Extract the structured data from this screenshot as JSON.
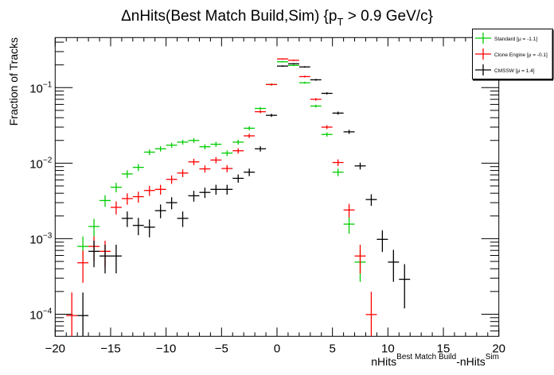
{
  "chart_data": {
    "type": "scatter",
    "title": "ΔnHits(Best Match Build,Sim) {p",
    "title_sub": "T",
    "title_tail": " > 0.9 GeV/c}",
    "xlabel": "nHits",
    "xlabel_sup1": "Best Match Build",
    "xlabel_mid": "-nHits",
    "xlabel_sup2": "Sim",
    "ylabel": "Fraction of Tracks",
    "xlim": [
      -20,
      20
    ],
    "ylim": [
      5.1e-05,
      0.46
    ],
    "yscale": "log",
    "bin_width": 1,
    "x_ticks": [
      "−20",
      "−15",
      "−10",
      "−5",
      "0",
      "5",
      "10",
      "15",
      "20"
    ],
    "x_tick_values": [
      -20,
      -15,
      -10,
      -5,
      0,
      5,
      10,
      15,
      20
    ],
    "y_ticks": [
      {
        "base": "10",
        "exp": "−1",
        "value": 0.1
      },
      {
        "base": "10",
        "exp": "−2",
        "value": 0.01
      },
      {
        "base": "10",
        "exp": "−3",
        "value": 0.001
      },
      {
        "base": "10",
        "exp": "−4",
        "value": 0.0001
      }
    ],
    "legend_position": "top-right",
    "series": [
      {
        "name": "Standard",
        "legend": "Standard  [μ = -1.1]",
        "color": "#00cc00",
        "x": [
          -17.5,
          -16.5,
          -15.5,
          -14.5,
          -13.5,
          -12.5,
          -11.5,
          -10.5,
          -9.5,
          -8.5,
          -7.5,
          -6.5,
          -5.5,
          -4.5,
          -3.5,
          -2.5,
          -1.5,
          -0.5,
          0.5,
          1.5,
          2.5,
          3.5,
          4.5,
          5.5,
          6.5,
          7.5
        ],
        "y": [
          0.00079,
          0.00145,
          0.0032,
          0.0048,
          0.0072,
          0.0088,
          0.014,
          0.0155,
          0.0173,
          0.019,
          0.02,
          0.0165,
          0.0178,
          0.0136,
          0.019,
          0.029,
          0.053,
          0.11,
          0.22,
          0.197,
          0.116,
          0.057,
          0.024,
          0.0076,
          0.00156,
          0.00049
        ]
      },
      {
        "name": "Clone Engine",
        "legend": "Clone Engine  [μ = -0.1]",
        "color": "#ff0000",
        "x": [
          -18.5,
          -17.5,
          -16.5,
          -15.5,
          -14.5,
          -13.5,
          -12.5,
          -11.5,
          -10.5,
          -9.5,
          -8.5,
          -7.5,
          -6.5,
          -5.5,
          -4.5,
          -3.5,
          -2.5,
          -1.5,
          -0.5,
          0.5,
          1.5,
          2.5,
          3.5,
          4.5,
          5.5,
          6.5,
          7.5,
          8.5
        ],
        "y": [
          9.6e-05,
          0.00048,
          0.00079,
          0.00068,
          0.0026,
          0.0034,
          0.0036,
          0.00435,
          0.0045,
          0.0061,
          0.0074,
          0.0104,
          0.0084,
          0.011,
          0.0085,
          0.0146,
          0.023,
          0.048,
          0.11,
          0.24,
          0.23,
          0.14,
          0.07,
          0.03,
          0.0102,
          0.0024,
          0.00059,
          9.9e-05
        ]
      },
      {
        "name": "CMSSW",
        "legend": "CMSSW  [μ =  1.4]",
        "color": "#000000",
        "x": [
          -17.5,
          -16.5,
          -15.5,
          -14.5,
          -13.5,
          -12.5,
          -11.5,
          -10.5,
          -9.5,
          -8.5,
          -7.5,
          -6.5,
          -5.5,
          -4.5,
          -3.5,
          -2.5,
          -1.5,
          -0.5,
          0.5,
          1.5,
          2.5,
          3.5,
          4.5,
          5.5,
          6.5,
          7.5,
          8.5,
          9.5,
          10.5,
          11.5
        ],
        "y": [
          9.6e-05,
          0.00068,
          0.00059,
          0.00059,
          0.00186,
          0.0015,
          0.00142,
          0.00235,
          0.003,
          0.00186,
          0.0037,
          0.0041,
          0.0045,
          0.0045,
          0.0063,
          0.0076,
          0.0155,
          0.043,
          0.193,
          0.207,
          0.188,
          0.127,
          0.084,
          0.046,
          0.026,
          0.0092,
          0.0033,
          0.00098,
          0.00049,
          0.00029
        ]
      }
    ]
  }
}
